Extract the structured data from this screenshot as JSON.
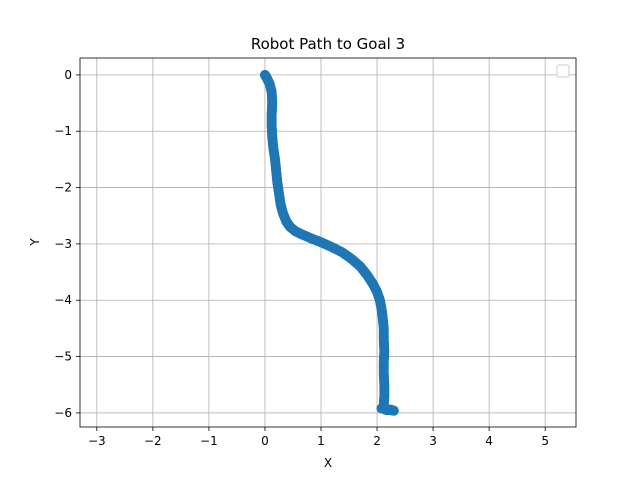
{
  "chart_data": {
    "type": "scatter",
    "title": "Robot Path to Goal 3",
    "xlabel": "X",
    "ylabel": "Y",
    "xlim": [
      -3.3,
      5.55
    ],
    "ylim": [
      -6.25,
      0.3
    ],
    "xticks": [
      -3,
      -2,
      -1,
      0,
      1,
      2,
      3,
      4,
      5
    ],
    "yticks": [
      0,
      -1,
      -2,
      -3,
      -4,
      -5,
      -6
    ],
    "xtick_labels": [
      "−3",
      "−2",
      "−1",
      "0",
      "1",
      "2",
      "3",
      "4",
      "5"
    ],
    "ytick_labels": [
      "0",
      "−1",
      "−2",
      "−3",
      "−4",
      "−5",
      "−6"
    ],
    "grid": true,
    "legend": {
      "placement": "top-right",
      "entries": []
    },
    "series": [
      {
        "color": "#1f77b4",
        "x": [
          0.0,
          0.03,
          0.08,
          0.12,
          0.13,
          0.12,
          0.12,
          0.13,
          0.15,
          0.18,
          0.2,
          0.22,
          0.25,
          0.28,
          0.32,
          0.38,
          0.45,
          0.55,
          0.68,
          0.82,
          1.0,
          1.18,
          1.38,
          1.55,
          1.7,
          1.82,
          1.92,
          2.0,
          2.05,
          2.08,
          2.1,
          2.12,
          2.12,
          2.13,
          2.12,
          2.12,
          2.13,
          2.13,
          2.12,
          2.12,
          2.13,
          2.15,
          2.18,
          2.22,
          2.26,
          2.3,
          2.08
        ],
        "y": [
          0.0,
          -0.05,
          -0.15,
          -0.3,
          -0.5,
          -0.7,
          -0.9,
          -1.1,
          -1.3,
          -1.5,
          -1.7,
          -1.9,
          -2.1,
          -2.3,
          -2.45,
          -2.6,
          -2.7,
          -2.78,
          -2.84,
          -2.9,
          -2.97,
          -3.05,
          -3.15,
          -3.27,
          -3.4,
          -3.55,
          -3.7,
          -3.85,
          -4.0,
          -4.15,
          -4.3,
          -4.5,
          -4.7,
          -4.9,
          -5.1,
          -5.3,
          -5.5,
          -5.7,
          -5.85,
          -5.92,
          -5.93,
          -5.94,
          -5.95,
          -5.94,
          -5.95,
          -5.96,
          -5.92
        ]
      }
    ]
  }
}
